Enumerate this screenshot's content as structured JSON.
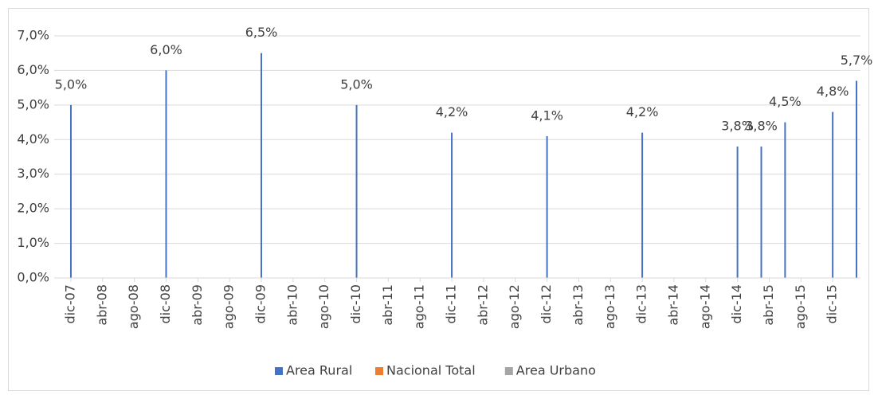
{
  "chart_data": {
    "type": "bar",
    "categories": [
      "dic-07",
      null,
      null,
      null,
      "abr-08",
      null,
      null,
      null,
      "ago-08",
      null,
      null,
      null,
      "dic-08",
      null,
      null,
      null,
      "abr-09",
      null,
      null,
      null,
      "ago-09",
      null,
      null,
      null,
      "dic-09",
      null,
      null,
      null,
      "abr-10",
      null,
      null,
      null,
      "ago-10",
      null,
      null,
      null,
      "dic-10",
      null,
      null,
      null,
      "abr-11",
      null,
      null,
      null,
      "ago-11",
      null,
      null,
      null,
      "dic-11",
      null,
      null,
      null,
      "abr-12",
      null,
      null,
      null,
      "ago-12",
      null,
      null,
      null,
      "dic-12",
      null,
      null,
      null,
      "abr-13",
      null,
      null,
      null,
      "ago-13",
      null,
      null,
      null,
      "dic-13",
      null,
      null,
      null,
      "abr-14",
      null,
      null,
      null,
      "ago-14",
      null,
      null,
      null,
      "dic-14",
      null,
      null,
      null,
      "abr-15",
      null,
      null,
      null,
      "ago-15",
      null,
      null,
      null,
      "dic-15",
      null,
      null,
      null
    ],
    "series": [
      {
        "name": "Area Rural",
        "color": "#4472c4",
        "values": [
          5.0,
          null,
          null,
          null,
          null,
          null,
          null,
          null,
          null,
          null,
          null,
          null,
          6.0,
          null,
          null,
          null,
          null,
          null,
          null,
          null,
          null,
          null,
          null,
          null,
          6.5,
          null,
          null,
          null,
          null,
          null,
          null,
          null,
          null,
          null,
          null,
          null,
          5.0,
          null,
          null,
          null,
          null,
          null,
          null,
          null,
          null,
          null,
          null,
          null,
          4.2,
          null,
          null,
          null,
          null,
          null,
          null,
          null,
          null,
          null,
          null,
          null,
          4.1,
          null,
          null,
          null,
          null,
          null,
          null,
          null,
          null,
          null,
          null,
          null,
          4.2,
          null,
          null,
          null,
          null,
          null,
          null,
          null,
          null,
          null,
          null,
          null,
          3.8,
          null,
          null,
          3.8,
          null,
          null,
          4.5,
          null,
          null,
          null,
          null,
          null,
          4.8,
          null,
          null,
          5.7
        ],
        "value_labels": [
          "5,0%",
          null,
          null,
          null,
          null,
          null,
          null,
          null,
          null,
          null,
          null,
          null,
          "6,0%",
          null,
          null,
          null,
          null,
          null,
          null,
          null,
          null,
          null,
          null,
          null,
          "6,5%",
          null,
          null,
          null,
          null,
          null,
          null,
          null,
          null,
          null,
          null,
          null,
          "5,0%",
          null,
          null,
          null,
          null,
          null,
          null,
          null,
          null,
          null,
          null,
          null,
          "4,2%",
          null,
          null,
          null,
          null,
          null,
          null,
          null,
          null,
          null,
          null,
          null,
          "4,1%",
          null,
          null,
          null,
          null,
          null,
          null,
          null,
          null,
          null,
          null,
          null,
          "4,2%",
          null,
          null,
          null,
          null,
          null,
          null,
          null,
          null,
          null,
          null,
          null,
          "3,8%",
          null,
          null,
          "3,8%",
          null,
          null,
          "4,5%",
          null,
          null,
          null,
          null,
          null,
          "4,8%",
          null,
          null,
          "5,7%"
        ]
      },
      {
        "name": "Nacional Total",
        "color": "#ed7d31",
        "values": [
          null,
          null,
          null,
          null,
          null,
          null,
          null,
          null,
          null,
          null,
          null,
          null,
          null,
          null,
          null,
          null,
          null,
          null,
          null,
          null,
          null,
          null,
          null,
          null,
          null,
          null,
          null,
          null,
          null,
          null,
          null,
          null,
          null,
          null,
          null,
          null,
          null,
          null,
          null,
          null,
          null,
          null,
          null,
          null,
          null,
          null,
          null,
          null,
          null,
          null,
          null,
          null,
          null,
          null,
          null,
          null,
          null,
          null,
          null,
          null,
          null,
          null,
          null,
          null,
          null,
          null,
          null,
          null,
          null,
          null,
          null,
          null,
          null,
          null,
          null,
          null,
          null,
          null,
          null,
          null,
          null,
          null,
          null,
          null,
          null,
          null,
          null,
          null,
          null,
          null,
          null,
          null,
          null,
          null,
          null,
          null,
          null,
          null,
          null,
          null
        ]
      },
      {
        "name": "Area Urbano",
        "color": "#a5a5a5",
        "values": [
          null,
          null,
          null,
          null,
          null,
          null,
          null,
          null,
          null,
          null,
          null,
          null,
          null,
          null,
          null,
          null,
          null,
          null,
          null,
          null,
          null,
          null,
          null,
          null,
          null,
          null,
          null,
          null,
          null,
          null,
          null,
          null,
          null,
          null,
          null,
          null,
          null,
          null,
          null,
          null,
          null,
          null,
          null,
          null,
          null,
          null,
          null,
          null,
          null,
          null,
          null,
          null,
          null,
          null,
          null,
          null,
          null,
          null,
          null,
          null,
          null,
          null,
          null,
          null,
          null,
          null,
          null,
          null,
          null,
          null,
          null,
          null,
          null,
          null,
          null,
          null,
          null,
          null,
          null,
          null,
          null,
          null,
          null,
          null,
          null,
          null,
          null,
          null,
          null,
          null,
          null,
          null,
          null,
          null,
          null,
          null,
          null,
          null,
          null,
          null
        ]
      }
    ],
    "ylim": [
      0,
      7
    ],
    "yticks": [
      {
        "value": 0,
        "label": "0,0%"
      },
      {
        "value": 1,
        "label": "1,0%"
      },
      {
        "value": 2,
        "label": "2,0%"
      },
      {
        "value": 3,
        "label": "3,0%"
      },
      {
        "value": 4,
        "label": "4,0%"
      },
      {
        "value": 5,
        "label": "5,0%"
      },
      {
        "value": 6,
        "label": "6,0%"
      },
      {
        "value": 7,
        "label": "7,0%"
      }
    ],
    "grid": true,
    "legend": "bottom"
  }
}
